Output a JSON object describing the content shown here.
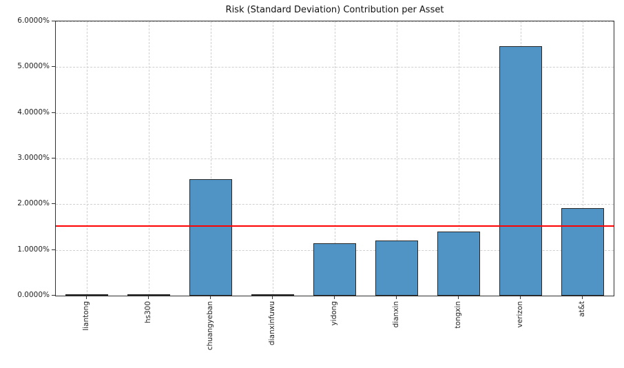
{
  "chart_data": {
    "type": "bar",
    "title": "Risk (Standard Deviation) Contribution per Asset",
    "categories": [
      "liantong",
      "hs300",
      "chuangyeban",
      "dianxinfuwu",
      "yidong",
      "dianxin",
      "tongxin",
      "verizon",
      "at&t"
    ],
    "values": [
      0.0,
      0.0,
      2.55,
      0.0,
      1.15,
      1.2,
      1.4,
      5.45,
      1.92
    ],
    "unit": "%",
    "ylim": [
      0,
      6
    ],
    "yticks": [
      0,
      1,
      2,
      3,
      4,
      5,
      6
    ],
    "ytick_labels": [
      "0.0000%",
      "1.0000%",
      "2.0000%",
      "3.0000%",
      "4.0000%",
      "5.0000%",
      "6.0000%"
    ],
    "reference_line": {
      "value": 1.52,
      "color": "#ff0000"
    },
    "grid": true,
    "grid_style": "dashed",
    "legend": false,
    "bar_color": "#4f94c4",
    "bar_edge_color": "#262626",
    "xlabel": "",
    "ylabel": ""
  }
}
